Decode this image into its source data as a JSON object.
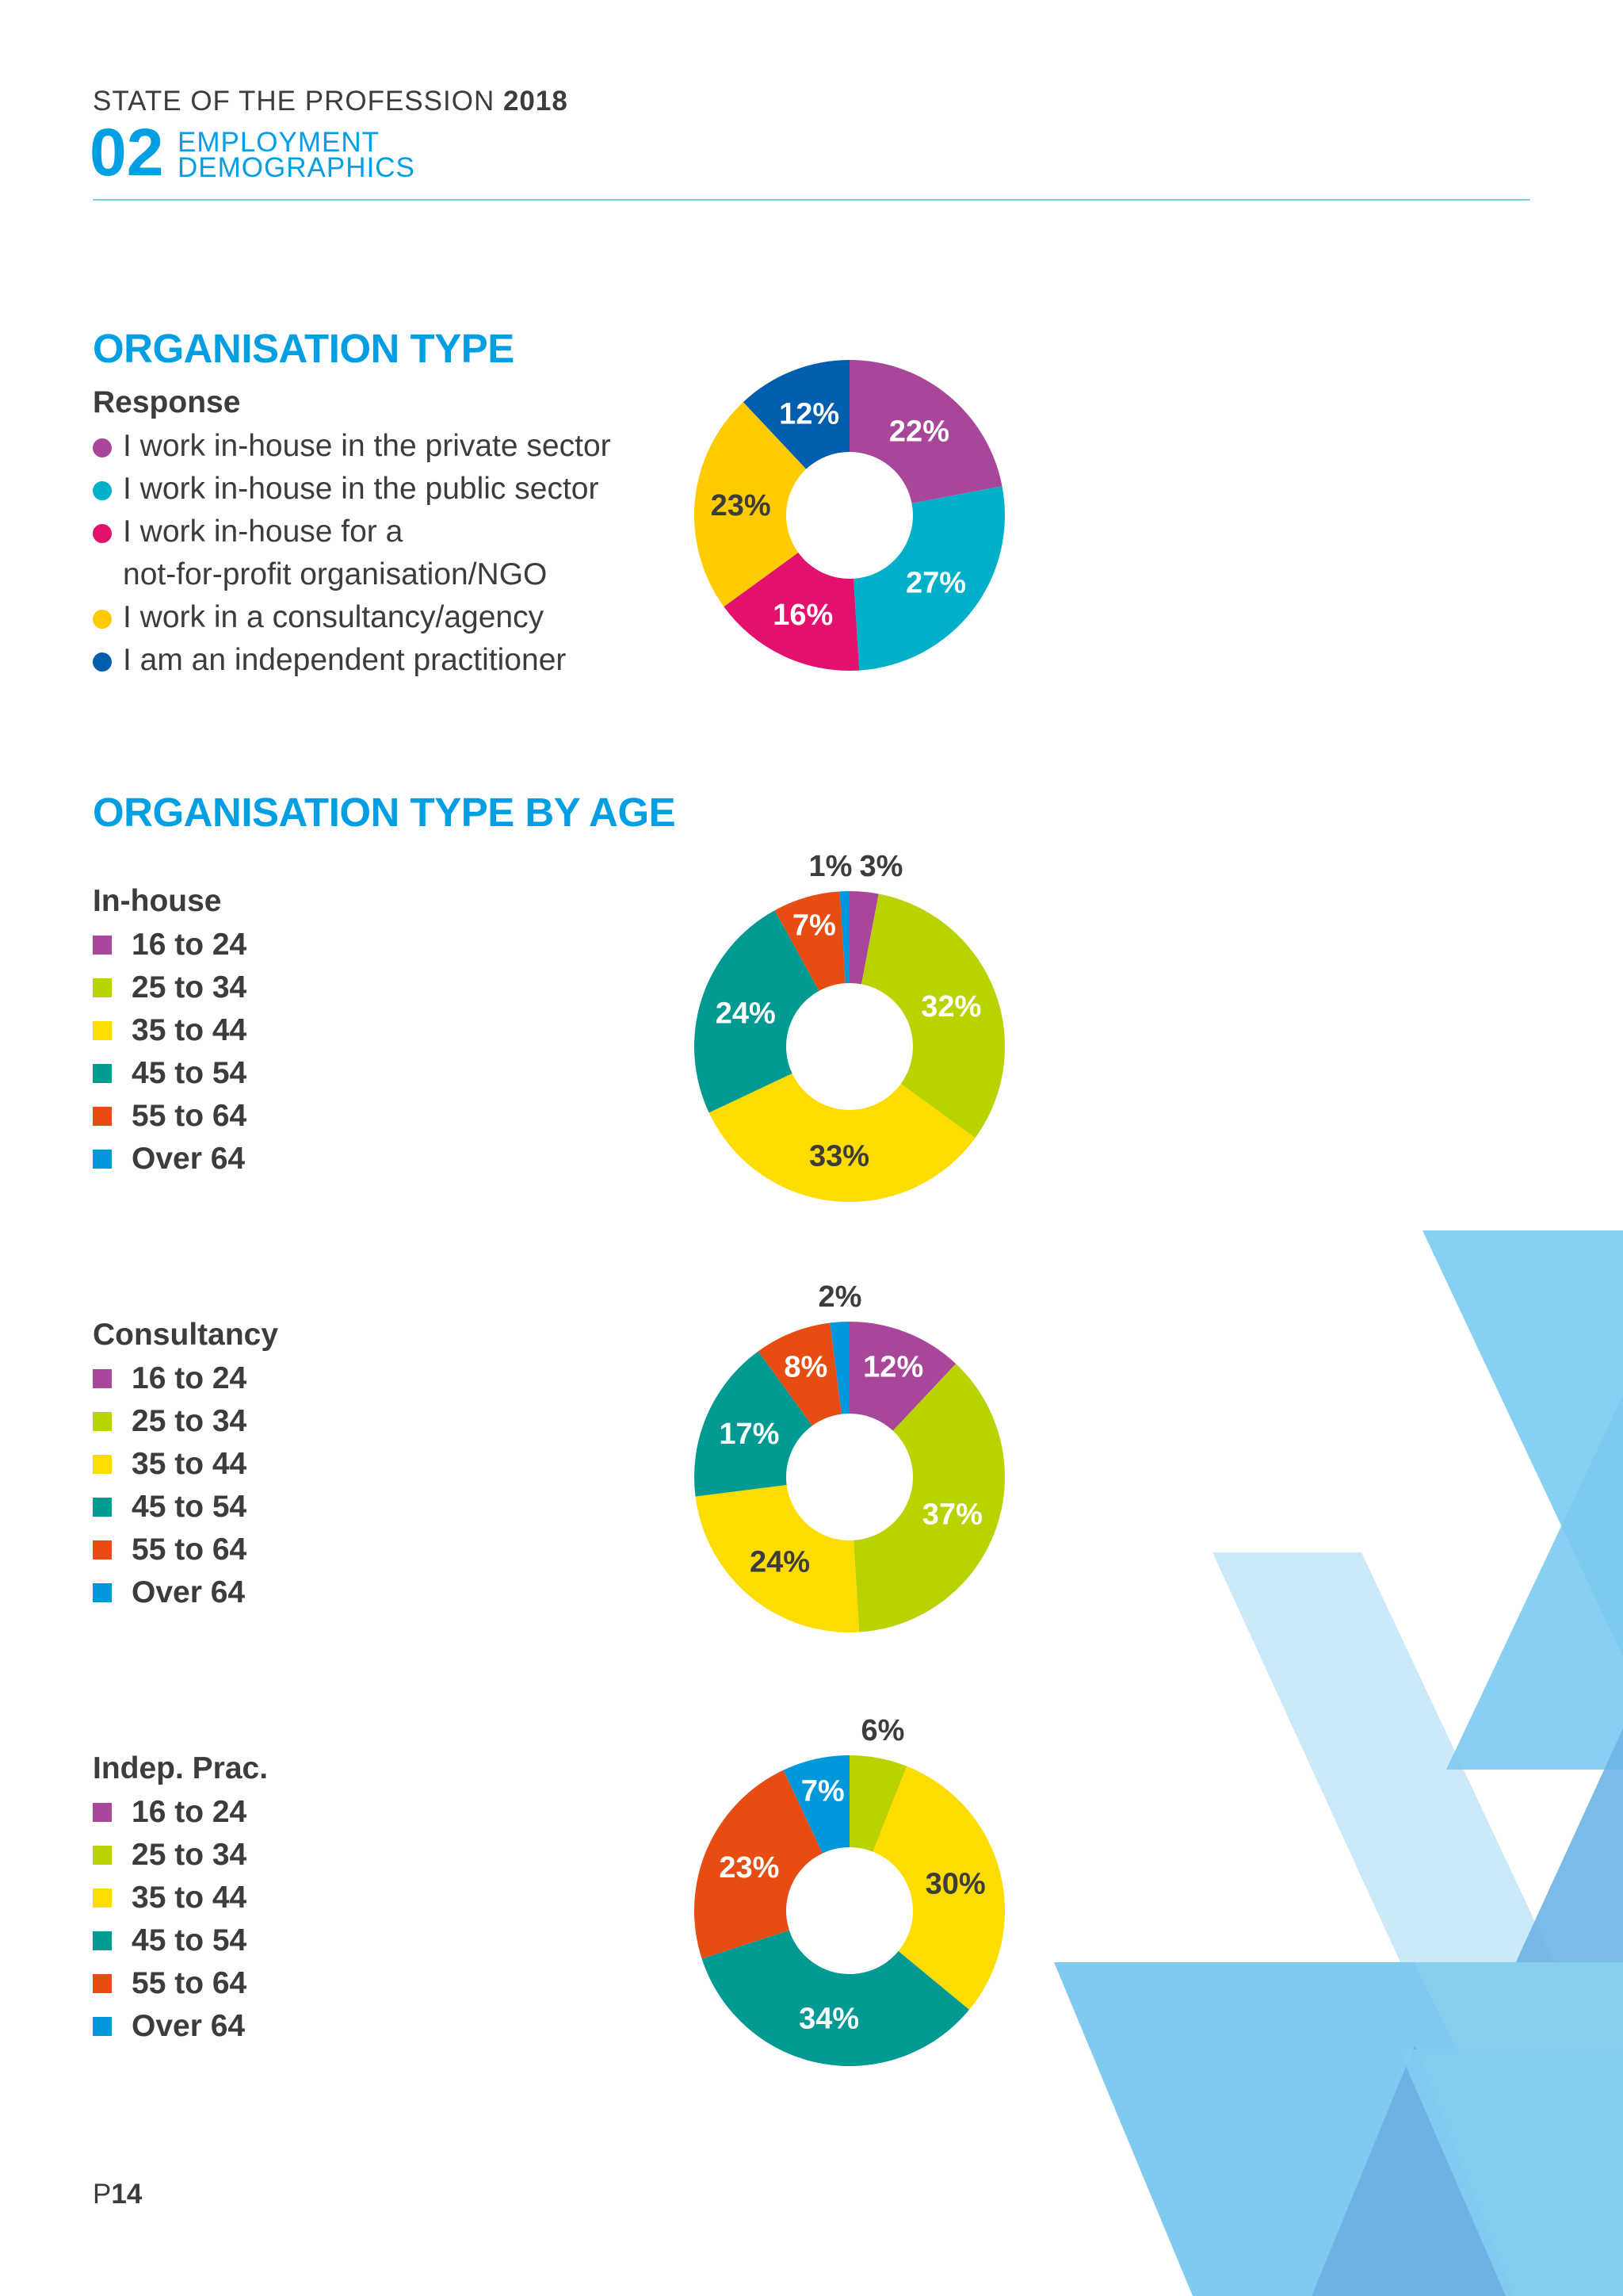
{
  "header": {
    "title_main": "STATE OF THE PROFESSION",
    "title_year": "2018",
    "section_number": "02",
    "section_name_line1": "EMPLOYMENT",
    "section_name_line2": "DEMOGRAPHICS"
  },
  "colors": {
    "accent": "#009fe3",
    "text": "#3c3c3b",
    "org": [
      "#a8479a",
      "#00b0c8",
      "#e3106e",
      "#fecb00",
      "#005eae"
    ],
    "age": [
      "#a8479a",
      "#bad200",
      "#fddc00",
      "#009a92",
      "#e74d13",
      "#0098db"
    ]
  },
  "org_legend": {
    "title": "Response",
    "items": [
      "I work in-house in the private sector",
      "I work in-house in the public sector",
      "I work in-house for a",
      "I work in a consultancy/agency",
      "I am an independent practitioner"
    ],
    "item3_line2": "not-for-profit organisation/NGO"
  },
  "age_legend_items": [
    "16 to 24",
    "25 to 34",
    "35 to 44",
    "45 to 54",
    "55 to 64",
    "Over 64"
  ],
  "page_number": {
    "prefix": "P",
    "number": "14"
  },
  "chart_data": [
    {
      "type": "pie",
      "title": "ORGANISATION TYPE",
      "legend_title": "Response",
      "donut": true,
      "categories": [
        "I work in-house in the private sector",
        "I work in-house in the public sector",
        "I work in-house for a not-for-profit organisation/NGO",
        "I work in a consultancy/agency",
        "I am an independent practitioner"
      ],
      "values": [
        22,
        27,
        16,
        23,
        12
      ],
      "labels": [
        "22%",
        "27%",
        "16%",
        "23%",
        "12%"
      ],
      "legend": "left"
    },
    {
      "type": "pie",
      "title": "ORGANISATION TYPE BY AGE",
      "legend_title": "In-house",
      "donut": true,
      "categories": [
        "16 to 24",
        "25 to 34",
        "35 to 44",
        "45 to 54",
        "55 to 64",
        "Over 64"
      ],
      "values": [
        3,
        32,
        33,
        24,
        7,
        1
      ],
      "labels": [
        "3%",
        "32%",
        "33%",
        "24%",
        "7%",
        "1%"
      ],
      "legend": "left"
    },
    {
      "type": "pie",
      "legend_title": "Consultancy",
      "donut": true,
      "categories": [
        "16 to 24",
        "25 to 34",
        "35 to 44",
        "45 to 54",
        "55 to 64",
        "Over 64"
      ],
      "values": [
        12,
        37,
        24,
        17,
        8,
        2
      ],
      "labels": [
        "12%",
        "37%",
        "24%",
        "17%",
        "8%",
        "2%"
      ],
      "legend": "left"
    },
    {
      "type": "pie",
      "legend_title": "Indep. Prac.",
      "donut": true,
      "categories": [
        "16 to 24",
        "25 to 34",
        "35 to 44",
        "45 to 54",
        "55 to 64",
        "Over 64"
      ],
      "values": [
        0,
        6,
        30,
        34,
        23,
        7
      ],
      "labels": [
        "",
        "6%",
        "30%",
        "34%",
        "23%",
        "7%"
      ],
      "legend": "left"
    }
  ]
}
